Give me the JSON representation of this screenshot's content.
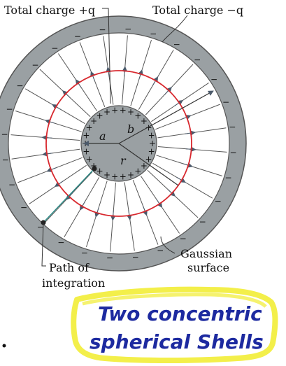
{
  "labels": {
    "total_charge_pos": "Total charge +q",
    "total_charge_neg": "Total charge −q",
    "radius_a": "a",
    "radius_b": "b",
    "radius_r": "r",
    "gaussian_line1": "Gaussian",
    "gaussian_line2": "surface",
    "path_line1": "Path of",
    "path_line2": "integration"
  },
  "note": {
    "line1": "Two concentric",
    "line2": "spherical Shells"
  },
  "colors": {
    "shell": "#9aa0a3",
    "gaussian": "#d8282e",
    "highlight": "#f3ef4a",
    "ink": "#1d2aa0",
    "arrow": "#4c5a6b"
  },
  "symbols": {
    "plus": "+",
    "minus": "−"
  }
}
